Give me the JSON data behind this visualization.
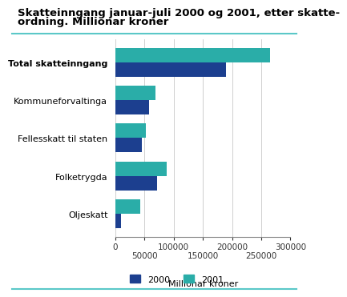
{
  "title_line1": "Skatteinngang januar-juli 2000 og 2001, etter skatte-",
  "title_line2": "ordning. Millionar kroner",
  "categories": [
    "Total skatteinngang",
    "Kommuneforvaltinga",
    "Fellesskatt til staten",
    "Folketrygda",
    "Oljeskatt"
  ],
  "values_2000": [
    190000,
    58000,
    45000,
    72000,
    10000
  ],
  "values_2001": [
    265000,
    68000,
    52000,
    88000,
    42000
  ],
  "color_2000": "#1c3f8f",
  "color_2001": "#2aada8",
  "xlabel": "Millionar kroner",
  "legend_labels": [
    "2000",
    "2001"
  ],
  "xlim": [
    0,
    300000
  ],
  "xticks_top": [
    0,
    100000,
    200000,
    300000
  ],
  "xticks_bottom": [
    50000,
    150000,
    250000
  ],
  "xtick_labels_top": [
    "0",
    "100000",
    "200000",
    "300000"
  ],
  "xtick_labels_bottom": [
    "50000",
    "150000",
    "250000"
  ],
  "bar_height": 0.38,
  "title_fontsize": 9.5,
  "label_fontsize": 8,
  "tick_fontsize": 7.5,
  "background_color": "#ffffff",
  "grid_color": "#c8c8c8",
  "top_line_color": "#5bc8c8",
  "bottom_line_color": "#5bc8c8"
}
